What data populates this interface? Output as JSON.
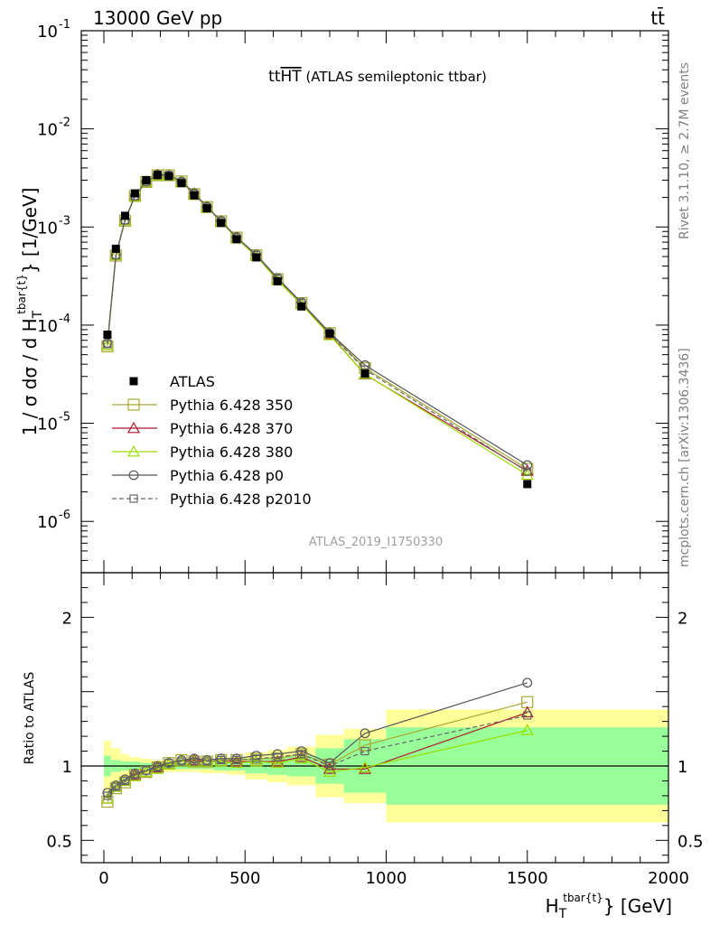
{
  "header": {
    "energy_label": "13000 GeV pp",
    "process_label": "tt̄"
  },
  "side_labels": {
    "rivet": "Rivet 3.1.10, ≥ 2.7M events",
    "mcplots": "mcplots.cern.ch [arXiv:1306.3436]"
  },
  "chart_data": {
    "type": "line",
    "title": "tt̄HT (ATLAS semileptonic ttbar)",
    "title_main": "tt",
    "title_over": "HT",
    "title_rest": " (ATLAS semileptonic ttbar)",
    "analysis_id": "ATLAS_2019_I1750330",
    "xlabel": "H",
    "xlabel_sub": "T",
    "xlabel_sup": "tbar{t}",
    "xlabel_unit": "} [GeV]",
    "ylabel_main": "1 / σ dσ / d H",
    "ylabel_sub": "T",
    "ylabel_sup": "tbar{t}",
    "ylabel_unit": "} [1/GeV]",
    "ratio_ylabel": "Ratio to ATLAS",
    "xlim": [
      -80,
      2000
    ],
    "ylim_main": [
      3e-07,
      0.1
    ],
    "ylim_ratio": [
      0.35,
      2.3
    ],
    "main_ytick_labels": [
      {
        "value": 0.1,
        "base": "10",
        "exp": "-1"
      },
      {
        "value": 0.01,
        "base": "10",
        "exp": "-2"
      },
      {
        "value": 0.001,
        "base": "10",
        "exp": "-3"
      },
      {
        "value": 0.0001,
        "base": "10",
        "exp": "-4"
      },
      {
        "value": 1e-05,
        "base": "10",
        "exp": "-5"
      },
      {
        "value": 1e-06,
        "base": "10",
        "exp": "-6"
      }
    ],
    "ratio_ytick_labels": [
      {
        "value": 0.5,
        "label": "0.5"
      },
      {
        "value": 1,
        "label": "1"
      },
      {
        "value": 2,
        "label": "2"
      }
    ],
    "xtick_labels": [
      {
        "value": 0,
        "label": "0"
      },
      {
        "value": 500,
        "label": "500"
      },
      {
        "value": 1000,
        "label": "1000"
      },
      {
        "value": 1500,
        "label": "1500"
      },
      {
        "value": 2000,
        "label": "2000"
      }
    ],
    "x": [
      12.5,
      42.5,
      75,
      110,
      150,
      190,
      230,
      275,
      320,
      365,
      415,
      470,
      540,
      615,
      700,
      800,
      925,
      1500
    ],
    "bin_edges": [
      0,
      25,
      60,
      90,
      130,
      170,
      210,
      250,
      300,
      340,
      390,
      440,
      500,
      580,
      650,
      750,
      850,
      1000,
      2000
    ],
    "data": {
      "name": "ATLAS",
      "values": [
        8e-05,
        0.0006,
        0.0013,
        0.0022,
        0.003,
        0.0034,
        0.0033,
        0.0028,
        0.0021,
        0.00155,
        0.0011,
        0.00075,
        0.00049,
        0.00028,
        0.000155,
        8.2e-05,
        3.2e-05,
        2.4e-06
      ]
    },
    "band_inner": [
      0.07,
      0.04,
      0.03,
      0.03,
      0.02,
      0.02,
      0.02,
      0.02,
      0.02,
      0.02,
      0.03,
      0.03,
      0.05,
      0.06,
      0.07,
      0.12,
      0.18,
      0.26
    ],
    "band_outer": [
      0.17,
      0.12,
      0.08,
      0.06,
      0.05,
      0.04,
      0.04,
      0.04,
      0.04,
      0.05,
      0.05,
      0.06,
      0.09,
      0.11,
      0.13,
      0.21,
      0.25,
      0.38
    ],
    "series": [
      {
        "name": "Pythia 6.428 350",
        "color": "#a8a830",
        "marker": "square",
        "dashed": false,
        "ratio": [
          0.76,
          0.85,
          0.89,
          0.94,
          0.96,
          0.99,
          1.02,
          1.04,
          1.03,
          1.03,
          1.04,
          1.04,
          1.05,
          1.05,
          1.08,
          1.01,
          1.14,
          1.43
        ]
      },
      {
        "name": "Pythia 6.428 370",
        "color": "#aa1a2a",
        "marker": "triangle",
        "dashed": false,
        "ratio": [
          0.78,
          0.86,
          0.9,
          0.94,
          0.96,
          0.99,
          1.01,
          1.03,
          1.04,
          1.03,
          1.03,
          1.03,
          1.03,
          1.03,
          1.06,
          0.98,
          0.98,
          1.36
        ]
      },
      {
        "name": "Pythia 6.428 380",
        "color": "#99dd00",
        "marker": "triangle",
        "dashed": false,
        "ratio": [
          0.78,
          0.86,
          0.9,
          0.93,
          0.96,
          0.98,
          1.01,
          1.03,
          1.03,
          1.03,
          1.03,
          1.02,
          1.03,
          1.02,
          1.05,
          0.96,
          0.99,
          1.24
        ]
      },
      {
        "name": "Pythia 6.428 p0",
        "color": "#555555",
        "marker": "circle",
        "dashed": false,
        "ratio": [
          0.82,
          0.87,
          0.91,
          0.95,
          0.97,
          1.0,
          1.02,
          1.04,
          1.05,
          1.04,
          1.05,
          1.05,
          1.07,
          1.08,
          1.1,
          1.02,
          1.22,
          1.56
        ]
      },
      {
        "name": "Pythia 6.428 p2010",
        "color": "#666666",
        "marker": "square",
        "dashed": true,
        "ratio": [
          0.8,
          0.86,
          0.9,
          0.94,
          0.97,
          0.99,
          1.02,
          1.03,
          1.03,
          1.03,
          1.04,
          1.04,
          1.05,
          1.06,
          1.08,
          1.0,
          1.1,
          1.34
        ]
      }
    ]
  }
}
